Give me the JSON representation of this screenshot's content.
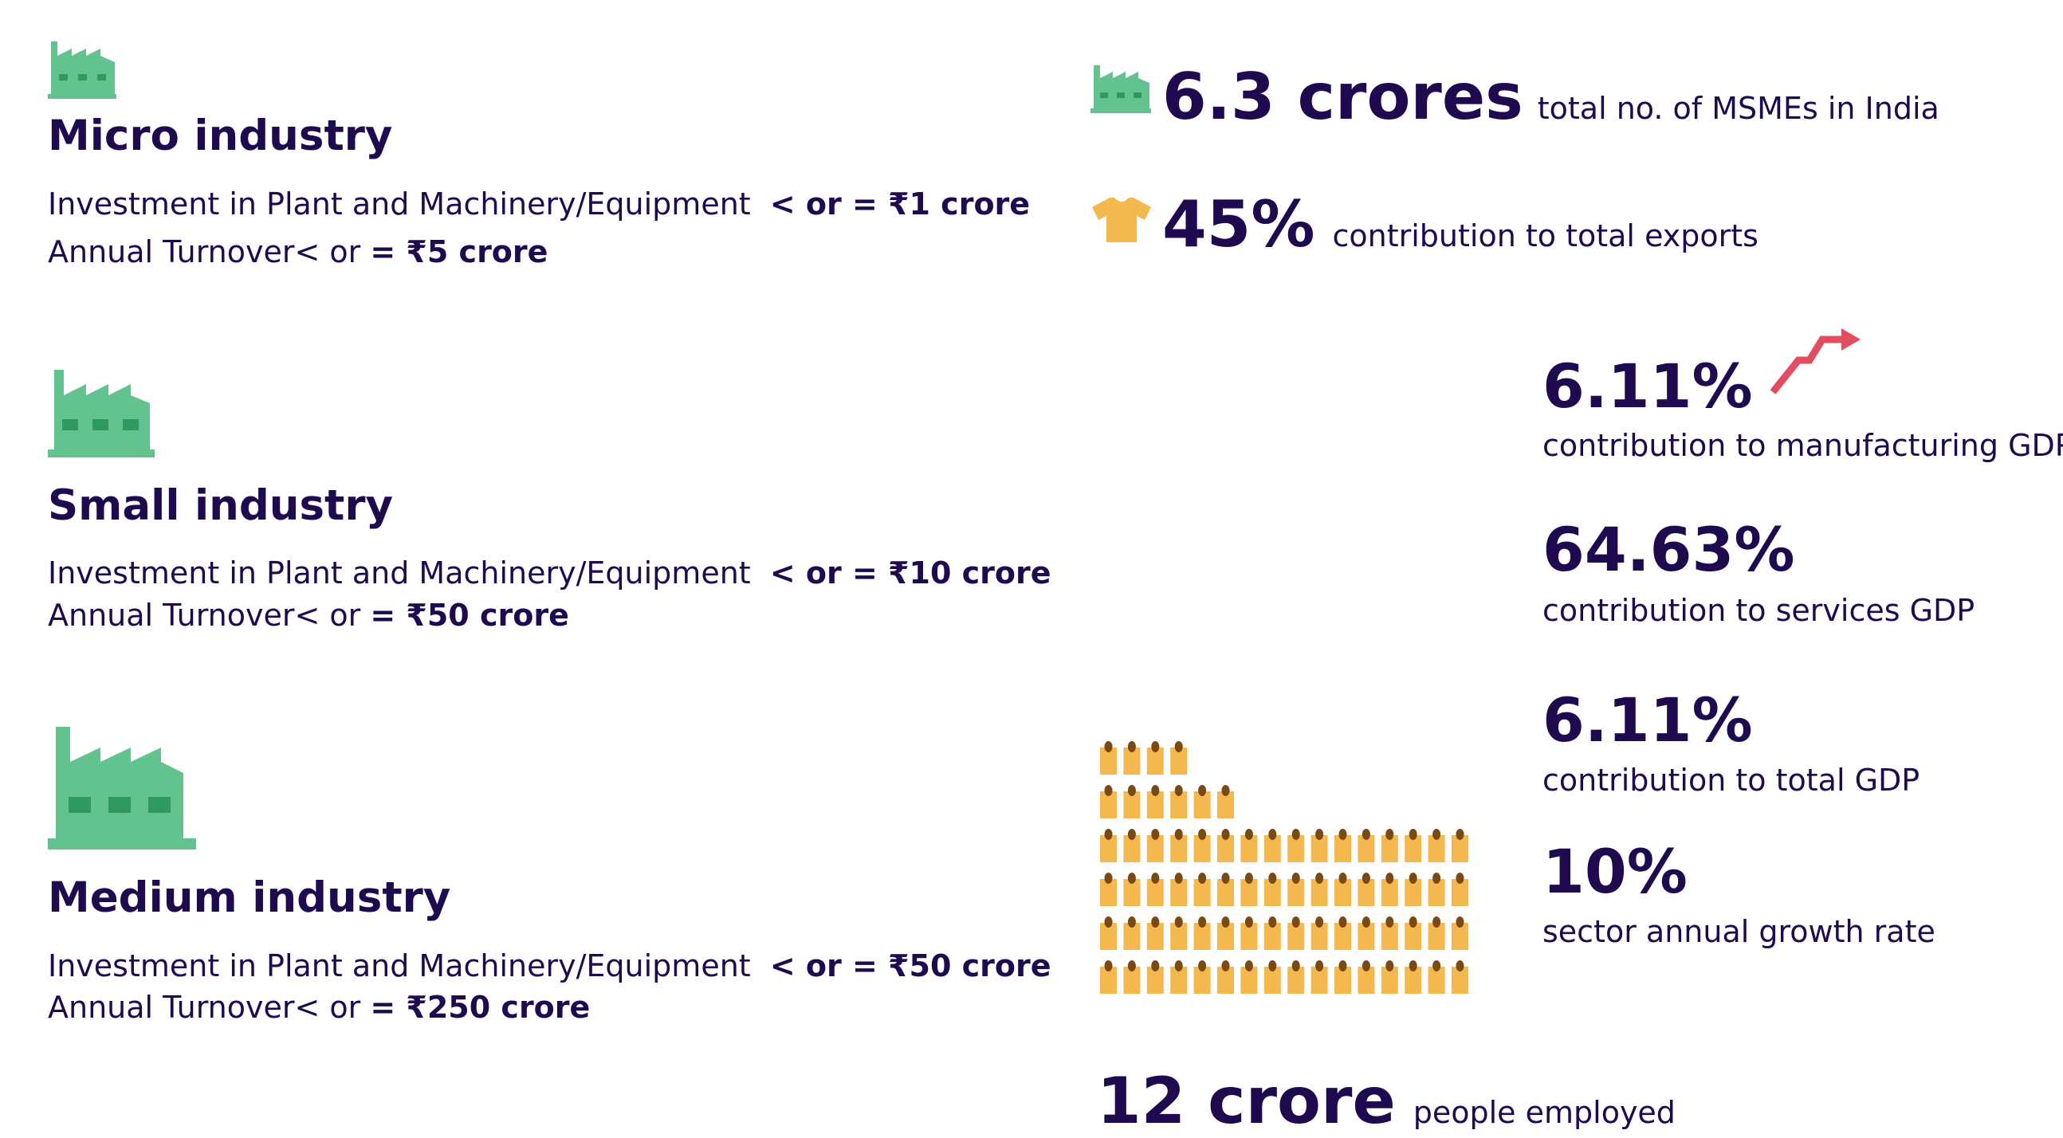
{
  "industries": [
    {
      "title": "Micro industry",
      "investment_label": "Investment in Plant and Machinery/Equipment",
      "investment_value": "< or = ₹1 crore",
      "turnover_label": "Annual Turnover< or",
      "turnover_value": "= ₹5 crore",
      "icon": "factory-icon"
    },
    {
      "title": "Small industry",
      "investment_label": "Investment in Plant and Machinery/Equipment",
      "investment_value": "< or = ₹10 crore",
      "turnover_label": "Annual Turnover< or",
      "turnover_value": "= ₹50 crore",
      "icon": "factory-icon"
    },
    {
      "title": "Medium industry",
      "investment_label": "Investment in Plant and Machinery/Equipment",
      "investment_value": "< or = ₹50 crore",
      "turnover_label": "Annual Turnover< or",
      "turnover_value": "= ₹250 crore",
      "icon": "factory-icon"
    }
  ],
  "stats": {
    "msmes": {
      "value": "6.3 crores",
      "label": "total no. of MSMEs in India",
      "icon": "factory-icon"
    },
    "exports": {
      "value": "45%",
      "label": "contribution to total exports",
      "icon": "tshirt-icon"
    },
    "manufacturing_gdp": {
      "value": "6.11%",
      "label": "contribution to manufacturing GDP",
      "icon": "trend-up-arrow-icon"
    },
    "services_gdp": {
      "value": "64.63%",
      "label": "contribution to services GDP"
    },
    "total_gdp": {
      "value": "6.11%",
      "label": "contribution to total GDP"
    },
    "growth_rate": {
      "value": "10%",
      "label": "sector annual growth rate"
    },
    "employment": {
      "value": "12 crore",
      "label": "people employed",
      "icon": "people-icon"
    }
  },
  "colors": {
    "text": "#1f0a4f",
    "factory": "#62c38e",
    "factory_window": "#2f9a5e",
    "shirt": "#f4b84f",
    "arrow": "#e04e60",
    "person_body": "#f4b84f",
    "person_head": "#7a4a14"
  }
}
